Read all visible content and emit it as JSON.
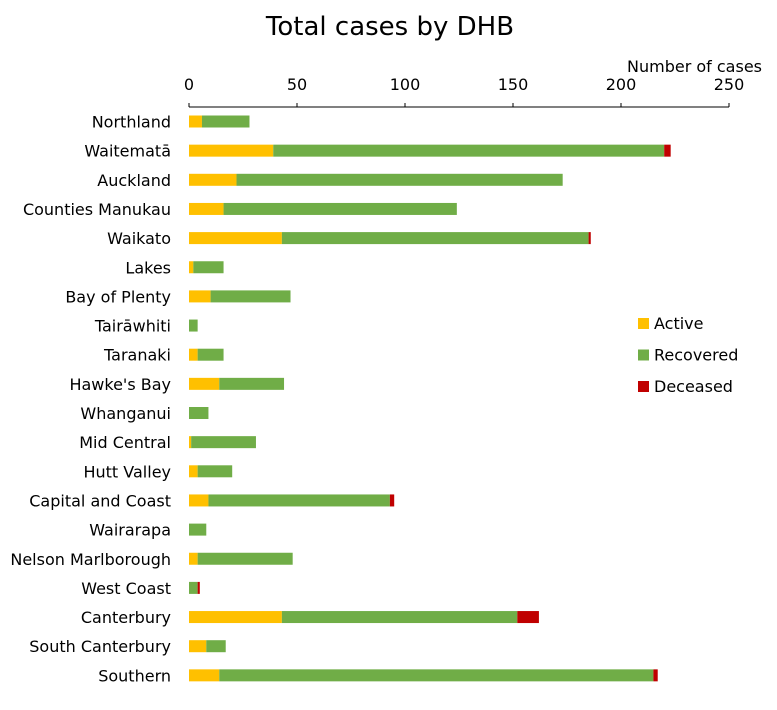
{
  "chart_data": {
    "type": "bar",
    "orientation": "horizontal",
    "stacked": true,
    "title": "Total cases by DHB",
    "xlabel": "Number of cases",
    "ylabel": "",
    "xlim": [
      0,
      250
    ],
    "xticks": [
      0,
      50,
      100,
      150,
      200,
      250
    ],
    "grid": false,
    "legend_position": "right",
    "categories": [
      "Northland",
      "Waitematā",
      "Auckland",
      "Counties Manukau",
      "Waikato",
      "Lakes",
      "Bay of Plenty",
      "Tairāwhiti",
      "Taranaki",
      "Hawke's Bay",
      "Whanganui",
      "Mid Central",
      "Hutt Valley",
      "Capital and Coast",
      "Wairarapa",
      "Nelson Marlborough",
      "West Coast",
      "Canterbury",
      "South Canterbury",
      "Southern"
    ],
    "series": [
      {
        "name": "Active",
        "color": "#FFC000",
        "values": [
          6,
          39,
          22,
          16,
          43,
          2,
          10,
          0,
          4,
          14,
          0,
          1,
          4,
          9,
          0,
          4,
          0,
          43,
          8,
          14
        ]
      },
      {
        "name": "Recovered",
        "color": "#70AD47",
        "values": [
          22,
          181,
          151,
          108,
          142,
          14,
          37,
          4,
          12,
          30,
          9,
          30,
          16,
          84,
          8,
          44,
          4,
          109,
          9,
          201
        ]
      },
      {
        "name": "Deceased",
        "color": "#C00000",
        "values": [
          0,
          3,
          0,
          0,
          1,
          0,
          0,
          0,
          0,
          0,
          0,
          0,
          0,
          2,
          0,
          0,
          1,
          10,
          0,
          2
        ]
      }
    ]
  }
}
